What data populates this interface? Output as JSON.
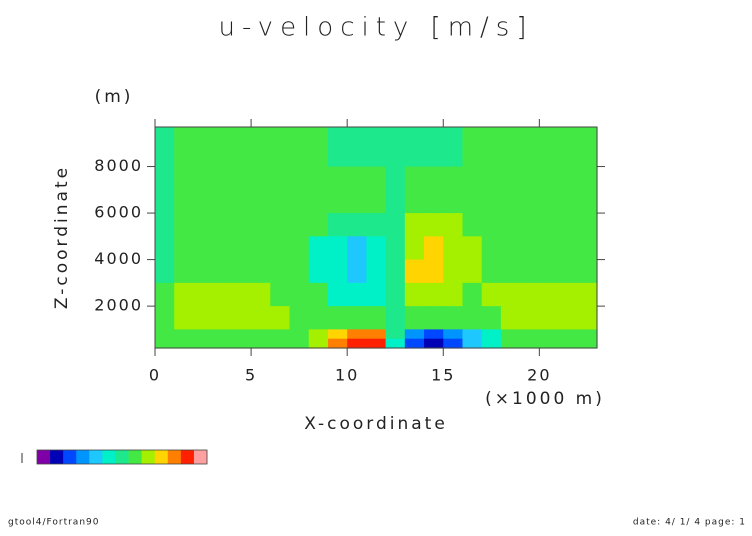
{
  "chart_data": {
    "type": "contour",
    "title": "u-velocity [m/s]",
    "x_label": "X-coordinate",
    "x_unit": "(×1000 m)",
    "y_label": "Z-coordinate",
    "y_unit": "(m)",
    "footer_left": "gtool4/Fortran90",
    "footer_right": "date: 4/ 1/ 4 page: 1",
    "xlim": [
      0,
      23
    ],
    "ylim": [
      200,
      9700
    ],
    "xticks": [
      0,
      5,
      10,
      15,
      20
    ],
    "yticks": [
      2000,
      4000,
      6000,
      8000
    ],
    "x_edges": [
      0,
      1,
      2,
      3,
      4,
      5,
      6,
      7,
      8,
      9,
      10,
      11,
      12,
      13,
      14,
      15,
      16,
      17,
      18,
      19,
      20,
      21,
      22,
      23
    ],
    "y_edges": [
      9700,
      9000,
      8000,
      7000,
      6000,
      5000,
      4000,
      3000,
      2000,
      1000,
      600,
      200
    ],
    "levels": [
      0,
      1,
      2,
      3,
      4,
      5,
      6,
      7,
      8,
      9,
      10,
      11,
      12
    ],
    "colors": [
      "#8000a8",
      "#0000b4",
      "#0048ff",
      "#0094ff",
      "#1ec8ff",
      "#00f0c8",
      "#1ee88c",
      "#44e844",
      "#a4f000",
      "#ffd400",
      "#ff8000",
      "#ff2000",
      "#ffa0a0"
    ],
    "values": [
      [
        6,
        7,
        7,
        7,
        7,
        7,
        7,
        7,
        7,
        6,
        6,
        6,
        6,
        6,
        6,
        6,
        7,
        7,
        7,
        7,
        7,
        7,
        7
      ],
      [
        6,
        7,
        7,
        7,
        7,
        7,
        7,
        7,
        7,
        6,
        6,
        6,
        6,
        6,
        6,
        6,
        7,
        7,
        7,
        7,
        7,
        7,
        7
      ],
      [
        6,
        7,
        7,
        7,
        7,
        7,
        7,
        7,
        7,
        7,
        7,
        7,
        6,
        7,
        7,
        7,
        7,
        7,
        7,
        7,
        7,
        7,
        7
      ],
      [
        6,
        7,
        7,
        7,
        7,
        7,
        7,
        7,
        7,
        7,
        7,
        7,
        6,
        7,
        7,
        7,
        7,
        7,
        7,
        7,
        7,
        7,
        7
      ],
      [
        6,
        7,
        7,
        7,
        7,
        7,
        7,
        7,
        7,
        6,
        6,
        6,
        6,
        8,
        8,
        8,
        7,
        7,
        7,
        7,
        7,
        7,
        7
      ],
      [
        6,
        7,
        7,
        7,
        7,
        7,
        7,
        7,
        5,
        5,
        4,
        5,
        6,
        8,
        9,
        8,
        8,
        7,
        7,
        7,
        7,
        7,
        7
      ],
      [
        6,
        7,
        7,
        7,
        7,
        7,
        7,
        7,
        5,
        5,
        4,
        5,
        6,
        9,
        9,
        8,
        8,
        7,
        7,
        7,
        7,
        7,
        7
      ],
      [
        7,
        8,
        8,
        8,
        8,
        8,
        7,
        7,
        7,
        5,
        5,
        5,
        6,
        8,
        8,
        8,
        7,
        8,
        8,
        8,
        8,
        8,
        8
      ],
      [
        7,
        8,
        8,
        8,
        8,
        8,
        8,
        7,
        7,
        7,
        7,
        7,
        6,
        7,
        7,
        7,
        7,
        7,
        8,
        8,
        8,
        8,
        8
      ],
      [
        7,
        7,
        7,
        7,
        7,
        7,
        7,
        7,
        8,
        9,
        10,
        10,
        6,
        3,
        2,
        3,
        4,
        5,
        7,
        7,
        7,
        7,
        7
      ],
      [
        7,
        7,
        7,
        7,
        7,
        7,
        7,
        7,
        8,
        10,
        11,
        11,
        5,
        2,
        1,
        2,
        4,
        5,
        7,
        7,
        7,
        7,
        7
      ]
    ]
  }
}
